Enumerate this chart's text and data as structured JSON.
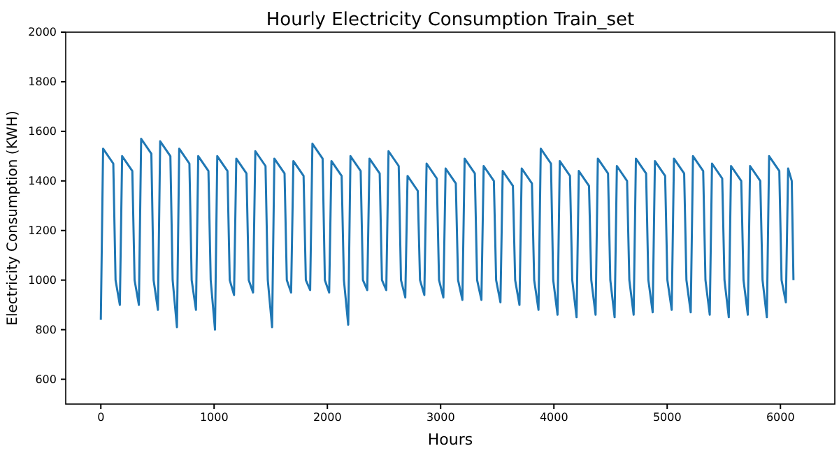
{
  "chart_data": {
    "type": "line",
    "title": "Hourly Electricity Consumption Train_set",
    "xlabel": "Hours",
    "ylabel": "Electricity Consumption (KWH)",
    "xlim": [
      -310,
      6480
    ],
    "ylim": [
      500,
      2000
    ],
    "xticks": [
      0,
      1000,
      2000,
      3000,
      4000,
      5000,
      6000
    ],
    "yticks": [
      600,
      800,
      1000,
      1200,
      1400,
      1600,
      1800,
      2000
    ],
    "grid": false,
    "marker": "none",
    "line_style": "solid",
    "series": [
      {
        "color": "#1f77b4",
        "x": [
          0,
          20,
          110,
          130,
          168,
          188,
          278,
          298,
          336,
          356,
          446,
          466,
          504,
          524,
          614,
          634,
          672,
          692,
          782,
          802,
          840,
          860,
          950,
          970,
          1008,
          1028,
          1118,
          1138,
          1176,
          1196,
          1286,
          1306,
          1344,
          1364,
          1454,
          1474,
          1512,
          1532,
          1622,
          1642,
          1680,
          1700,
          1790,
          1810,
          1848,
          1868,
          1958,
          1978,
          2016,
          2036,
          2126,
          2146,
          2184,
          2204,
          2294,
          2314,
          2352,
          2372,
          2462,
          2482,
          2520,
          2540,
          2630,
          2650,
          2688,
          2708,
          2798,
          2818,
          2856,
          2876,
          2966,
          2986,
          3024,
          3044,
          3134,
          3154,
          3192,
          3212,
          3302,
          3322,
          3360,
          3380,
          3470,
          3490,
          3528,
          3548,
          3638,
          3658,
          3696,
          3716,
          3806,
          3826,
          3864,
          3884,
          3974,
          3994,
          4032,
          4052,
          4142,
          4162,
          4200,
          4220,
          4310,
          4330,
          4368,
          4388,
          4478,
          4498,
          4536,
          4556,
          4646,
          4666,
          4704,
          4724,
          4814,
          4834,
          4872,
          4892,
          4982,
          5002,
          5040,
          5060,
          5150,
          5170,
          5208,
          5228,
          5318,
          5338,
          5376,
          5396,
          5486,
          5506,
          5544,
          5564,
          5654,
          5674,
          5712,
          5732,
          5822,
          5842,
          5880,
          5900,
          5990,
          6010,
          6048,
          6068,
          6100,
          6115
        ],
        "values": [
          840,
          1530,
          1470,
          1000,
          900,
          1500,
          1440,
          1000,
          900,
          1570,
          1510,
          1000,
          880,
          1560,
          1500,
          1000,
          810,
          1530,
          1470,
          1000,
          880,
          1500,
          1440,
          1000,
          800,
          1500,
          1440,
          1000,
          940,
          1490,
          1430,
          1000,
          950,
          1520,
          1460,
          1000,
          810,
          1490,
          1430,
          1000,
          950,
          1480,
          1420,
          1000,
          960,
          1550,
          1490,
          1000,
          950,
          1480,
          1420,
          1000,
          820,
          1500,
          1440,
          1000,
          960,
          1490,
          1430,
          1000,
          960,
          1520,
          1460,
          1000,
          930,
          1420,
          1360,
          1000,
          940,
          1470,
          1410,
          1000,
          930,
          1450,
          1390,
          1000,
          920,
          1490,
          1430,
          1000,
          920,
          1460,
          1400,
          1000,
          910,
          1440,
          1380,
          1000,
          900,
          1450,
          1390,
          1000,
          880,
          1530,
          1470,
          1000,
          860,
          1480,
          1420,
          1000,
          850,
          1440,
          1380,
          1000,
          860,
          1490,
          1430,
          1000,
          850,
          1460,
          1400,
          1000,
          860,
          1490,
          1430,
          1000,
          870,
          1480,
          1420,
          1000,
          880,
          1490,
          1430,
          1000,
          870,
          1500,
          1440,
          1000,
          860,
          1470,
          1410,
          1000,
          850,
          1460,
          1400,
          1000,
          860,
          1460,
          1400,
          1000,
          850,
          1500,
          1440,
          1000,
          910,
          1450,
          1400,
          1000
        ]
      }
    ]
  }
}
